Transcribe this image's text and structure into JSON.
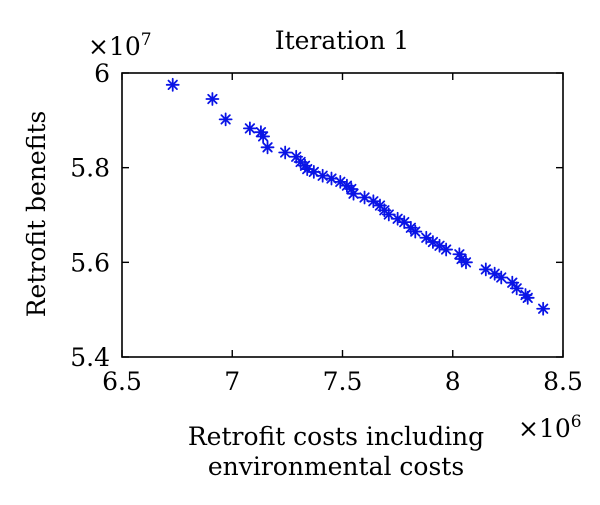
{
  "chart_data": {
    "type": "scatter",
    "title": "Iteration 1",
    "xlabel_lines": [
      "Retrofit costs including",
      "environmental costs"
    ],
    "ylabel": "Retrofit benefits",
    "x_multiplier": {
      "base": "×10",
      "exp": "6"
    },
    "y_multiplier": {
      "base": "×10",
      "exp": "7"
    },
    "xlim": [
      6.5,
      8.5
    ],
    "ylim": [
      5.4,
      6.0
    ],
    "xticks": [
      6.5,
      7,
      7.5,
      8,
      8.5
    ],
    "xtick_labels": [
      "6.5",
      "7",
      "7.5",
      "8",
      "8.5"
    ],
    "yticks": [
      5.4,
      5.6,
      5.8,
      6.0
    ],
    "ytick_labels": [
      "5.4",
      "5.6",
      "5.8",
      "6"
    ],
    "grid": false,
    "marker": "asterisk",
    "color": "#0a14e6",
    "series": [
      {
        "points": [
          [
            6.73,
            5.975
          ],
          [
            6.91,
            5.945
          ],
          [
            6.97,
            5.902
          ],
          [
            7.08,
            5.883
          ],
          [
            7.13,
            5.875
          ],
          [
            7.14,
            5.866
          ],
          [
            7.16,
            5.843
          ],
          [
            7.24,
            5.832
          ],
          [
            7.29,
            5.823
          ],
          [
            7.31,
            5.812
          ],
          [
            7.33,
            5.804
          ],
          [
            7.34,
            5.797
          ],
          [
            7.37,
            5.791
          ],
          [
            7.41,
            5.783
          ],
          [
            7.45,
            5.777
          ],
          [
            7.49,
            5.77
          ],
          [
            7.52,
            5.762
          ],
          [
            7.54,
            5.755
          ],
          [
            7.55,
            5.745
          ],
          [
            7.6,
            5.737
          ],
          [
            7.64,
            5.729
          ],
          [
            7.67,
            5.72
          ],
          [
            7.69,
            5.71
          ],
          [
            7.71,
            5.701
          ],
          [
            7.75,
            5.692
          ],
          [
            7.78,
            5.685
          ],
          [
            7.81,
            5.673
          ],
          [
            7.83,
            5.665
          ],
          [
            7.88,
            5.652
          ],
          [
            7.91,
            5.643
          ],
          [
            7.94,
            5.635
          ],
          [
            7.97,
            5.627
          ],
          [
            8.03,
            5.617
          ],
          [
            8.04,
            5.607
          ],
          [
            8.06,
            5.6
          ],
          [
            8.15,
            5.585
          ],
          [
            8.19,
            5.576
          ],
          [
            8.22,
            5.568
          ],
          [
            8.27,
            5.557
          ],
          [
            8.29,
            5.545
          ],
          [
            8.33,
            5.531
          ],
          [
            8.34,
            5.525
          ],
          [
            8.41,
            5.502
          ]
        ]
      }
    ]
  }
}
